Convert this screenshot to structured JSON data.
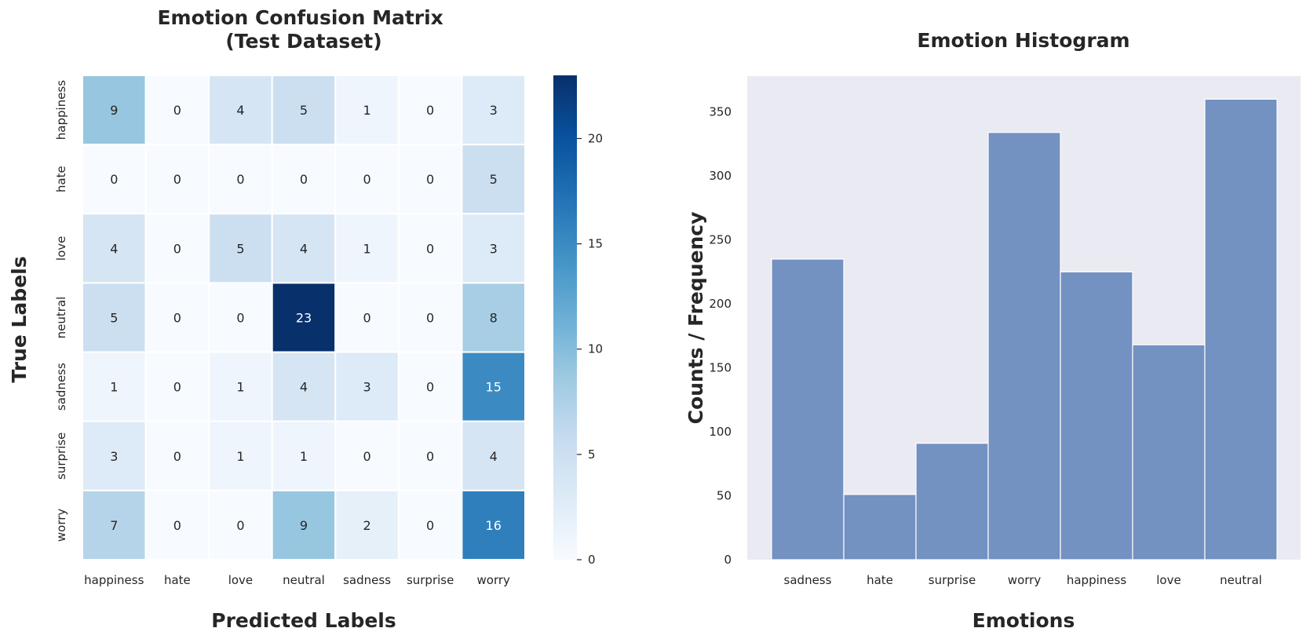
{
  "chart_data": [
    {
      "type": "heatmap",
      "title": "Emotion Confusion Matrix\n(Test Dataset)",
      "title_lines": [
        "Emotion Confusion Matrix",
        "(Test Dataset)"
      ],
      "xlabel": "Predicted Labels",
      "ylabel": "True Labels",
      "x_categories": [
        "happiness",
        "hate",
        "love",
        "neutral",
        "sadness",
        "surprise",
        "worry"
      ],
      "y_categories": [
        "happiness",
        "hate",
        "love",
        "neutral",
        "sadness",
        "surprise",
        "worry"
      ],
      "values": [
        [
          9,
          0,
          4,
          5,
          1,
          0,
          3
        ],
        [
          0,
          0,
          0,
          0,
          0,
          0,
          5
        ],
        [
          4,
          0,
          5,
          4,
          1,
          0,
          3
        ],
        [
          5,
          0,
          0,
          23,
          0,
          0,
          8
        ],
        [
          1,
          0,
          1,
          4,
          3,
          0,
          15
        ],
        [
          3,
          0,
          1,
          1,
          0,
          0,
          4
        ],
        [
          7,
          0,
          0,
          9,
          2,
          0,
          16
        ]
      ],
      "colormap": "Blues",
      "colorbar": {
        "min": 0,
        "max": 23,
        "ticks": [
          0,
          5,
          10,
          15,
          20
        ]
      }
    },
    {
      "type": "bar",
      "title": "Emotion Histogram",
      "xlabel": "Emotions",
      "ylabel": "Counts / Frequency",
      "categories": [
        "sadness",
        "hate",
        "surprise",
        "worry",
        "happiness",
        "love",
        "neutral"
      ],
      "values": [
        235,
        51,
        91,
        334,
        225,
        168,
        360
      ],
      "ylim": [
        0,
        378
      ],
      "yticks": [
        0,
        50,
        100,
        150,
        200,
        250,
        300,
        350
      ],
      "grid": false,
      "bar_color": "#7391c1",
      "background": "#eaeaf2"
    }
  ]
}
